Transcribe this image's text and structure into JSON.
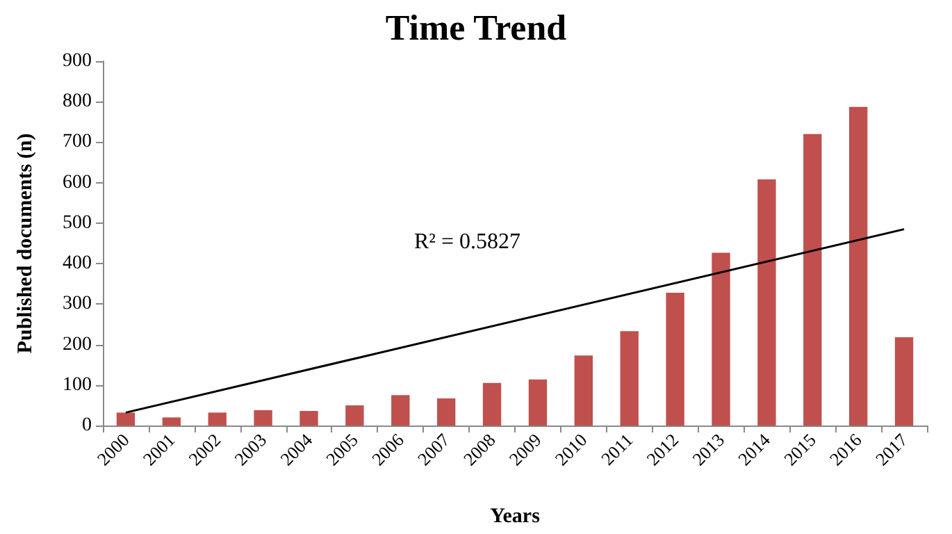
{
  "chart_data": {
    "type": "bar",
    "title": "Time Trend",
    "xlabel": "Years",
    "ylabel": "Published documents (n)",
    "categories": [
      "2000",
      "2001",
      "2002",
      "2003",
      "2004",
      "2005",
      "2006",
      "2007",
      "2008",
      "2009",
      "2010",
      "2011",
      "2012",
      "2013",
      "2014",
      "2015",
      "2016",
      "2017"
    ],
    "series": [
      {
        "color": "#c0504d",
        "values": [
          32,
          20,
          32,
          38,
          36,
          50,
          75,
          67,
          105,
          114,
          173,
          233,
          328,
          427,
          608,
          720,
          787,
          218
        ]
      },
      {
        "type": "line",
        "color": "#000000",
        "values": [
          32,
          null,
          null,
          null,
          null,
          null,
          null,
          null,
          null,
          null,
          null,
          null,
          null,
          null,
          null,
          null,
          null,
          485
        ],
        "marker": "none"
      }
    ],
    "annotations": [
      "R² = 0.5827"
    ],
    "ylim": [
      0,
      900
    ],
    "yticks": [
      0,
      100,
      200,
      300,
      400,
      500,
      600,
      700,
      800,
      900
    ],
    "grid": false
  }
}
